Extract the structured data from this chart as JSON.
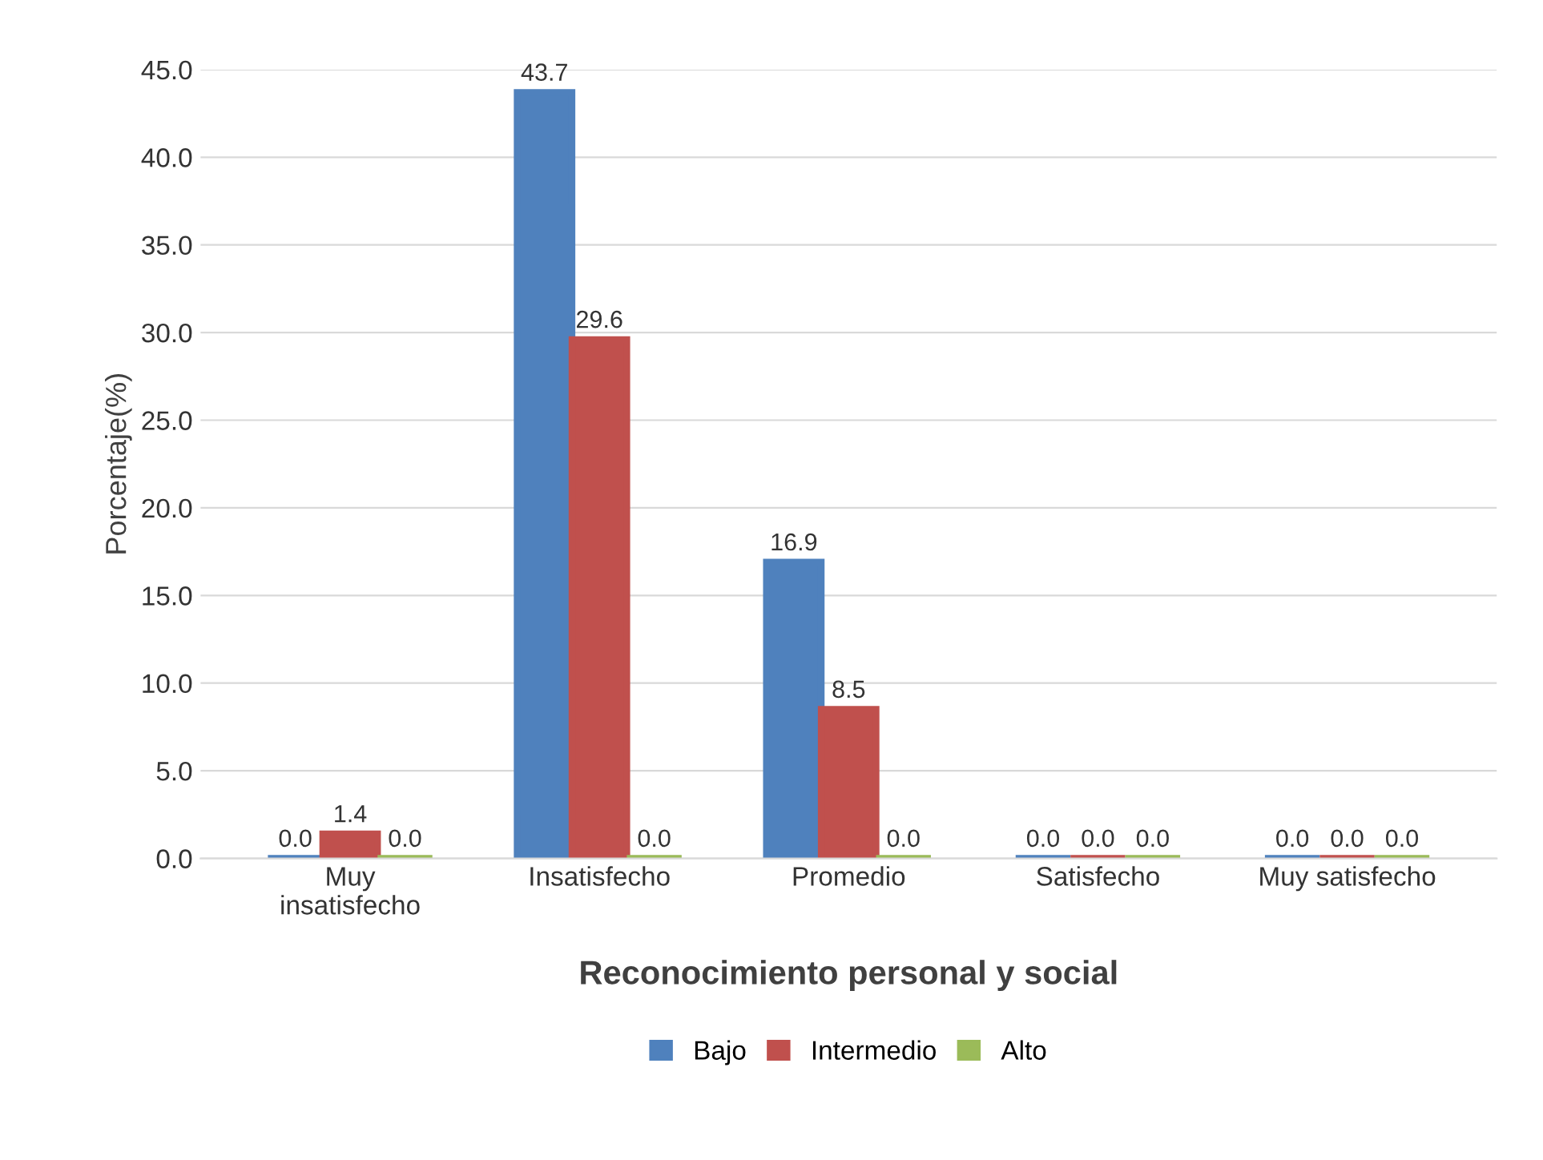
{
  "chart_data": {
    "type": "bar",
    "xlabel": "Reconocimiento personal y social",
    "ylabel": "Porcentaje(%)",
    "categories": [
      "Muy\ninsatisfecho",
      "Insatisfecho",
      "Promedio",
      "Satisfecho",
      "Muy satisfecho"
    ],
    "series": [
      {
        "name": "Bajo",
        "color": "#4f81bd",
        "values": [
          0.0,
          43.7,
          16.9,
          0.0,
          0.0
        ],
        "value_labels": [
          "0.0",
          "43.7",
          "16.9",
          "0.0",
          "0.0"
        ]
      },
      {
        "name": "Intermedio",
        "color": "#c0504d",
        "values": [
          1.4,
          29.6,
          8.5,
          0.0,
          0.0
        ],
        "value_labels": [
          "1.4",
          "29.6",
          "8.5",
          "0.0",
          "0.0"
        ]
      },
      {
        "name": "Alto",
        "color": "#9bbb59",
        "values": [
          0.0,
          0.0,
          0.0,
          0.0,
          0.0
        ],
        "value_labels": [
          "0.0",
          "0.0",
          "0.0",
          "0.0",
          "0.0"
        ]
      }
    ],
    "ylim": [
      0,
      45
    ],
    "yticks": [
      {
        "value": 0,
        "label": "0.0"
      },
      {
        "value": 5,
        "label": "5.0"
      },
      {
        "value": 10,
        "label": "10.0"
      },
      {
        "value": 15,
        "label": "15.0"
      },
      {
        "value": 20,
        "label": "20.0"
      },
      {
        "value": 25,
        "label": "25.0"
      },
      {
        "value": 30,
        "label": "30.0"
      },
      {
        "value": 35,
        "label": "35.0"
      },
      {
        "value": 40,
        "label": "40.0"
      },
      {
        "value": 45,
        "label": "45.0"
      }
    ],
    "grid": "y",
    "legend": "bottom"
  }
}
